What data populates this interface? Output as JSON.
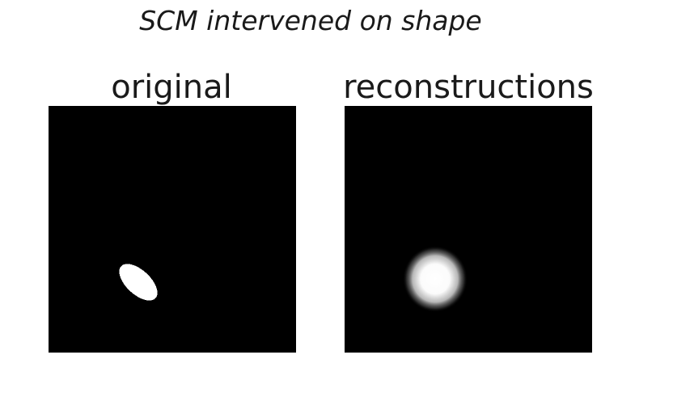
{
  "figure": {
    "title": "SCM intervened on shape"
  },
  "panels": [
    {
      "title": "original",
      "image": "binary image: black background with a single white elongated ellipse in the lower-left area"
    },
    {
      "title": "reconstructions",
      "image": "grayscale image: black background with a blurry white roughly round blob in the lower-left area"
    }
  ],
  "colors": {
    "background": "#000000",
    "foreground": "#ffffff",
    "text": "#1a1a1a"
  }
}
